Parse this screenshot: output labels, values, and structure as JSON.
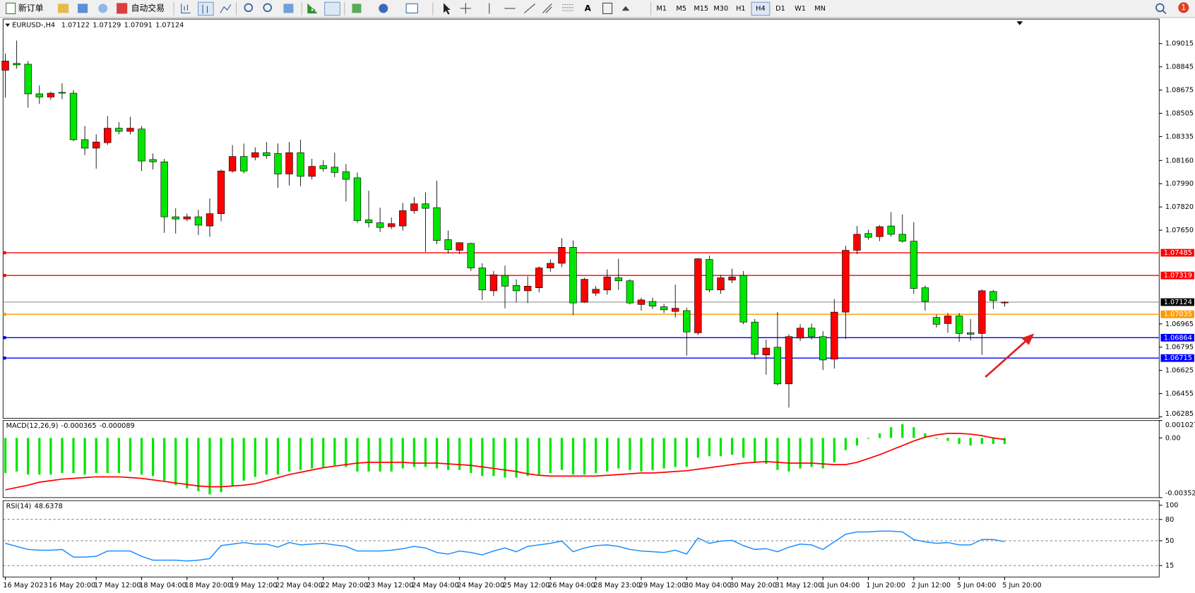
{
  "toolbar": {
    "buttons": [
      "新订单",
      "自动交易"
    ],
    "timeframes": [
      "M1",
      "M5",
      "M15",
      "M30",
      "H1",
      "H4",
      "D1",
      "W1",
      "MN"
    ],
    "active_timeframe": "H4",
    "notifications": 1
  },
  "chart_data": [
    {
      "type": "candlestick",
      "title": "EURUSD-,H4",
      "up_color": "#ff0000",
      "down_color": "#00e600",
      "categories": [
        "16 May 2023",
        null,
        null,
        null,
        "16 May 20:00",
        null,
        null,
        null,
        "17 May 12:00",
        null,
        null,
        null,
        "18 May 04:00",
        null,
        null,
        null,
        "18 May 20:00",
        null,
        null,
        null,
        "19 May 12:00",
        null,
        null,
        null,
        "22 May 04:00",
        null,
        null,
        null,
        "22 May 20:00",
        null,
        null,
        null,
        "23 May 12:00",
        null,
        null,
        null,
        "24 May 04:00",
        null,
        null,
        null,
        "24 May 20:00",
        null,
        null,
        null,
        "25 May 12:00",
        null,
        null,
        null,
        "26 May 04:00",
        null,
        null,
        null,
        "28 May 23:00",
        null,
        null,
        null,
        "29 May 12:00",
        null,
        null,
        null,
        "30 May 04:00",
        null,
        null,
        null,
        "30 May 20:00",
        null,
        null,
        null,
        "31 May 12:00",
        null,
        null,
        null,
        "1 Jun 04:00",
        null,
        null,
        null,
        "1 Jun 20:00",
        null,
        null,
        null,
        "2 Jun 12:00",
        null,
        null,
        null,
        "5 Jun 04:00",
        null,
        null,
        null,
        "5 Jun 20:00"
      ],
      "ohlc": [
        [
          1.0882,
          1.08942,
          1.08619,
          1.08887
        ],
        [
          1.0887,
          1.09037,
          1.08831,
          1.08859
        ],
        [
          1.08864,
          1.08887,
          1.08546,
          1.08647
        ],
        [
          1.08647,
          1.08708,
          1.08574,
          1.08624
        ],
        [
          1.08624,
          1.08663,
          1.08602,
          1.08652
        ],
        [
          1.08658,
          1.08725,
          1.08608,
          1.08652
        ],
        [
          1.08652,
          1.08675,
          1.08301,
          1.08312
        ],
        [
          1.08312,
          1.08412,
          1.082,
          1.0825
        ],
        [
          1.0825,
          1.08351,
          1.081,
          1.08295
        ],
        [
          1.0829,
          1.08485,
          1.08273,
          1.08396
        ],
        [
          1.08396,
          1.0844,
          1.08351,
          1.08373
        ],
        [
          1.08373,
          1.08479,
          1.08351,
          1.08396
        ],
        [
          1.0839,
          1.08412,
          1.08083,
          1.08156
        ],
        [
          1.08167,
          1.08211,
          1.08094,
          1.0815
        ],
        [
          1.0815,
          1.08172,
          1.07631,
          1.07748
        ],
        [
          1.07748,
          1.0781,
          1.07626,
          1.07732
        ],
        [
          1.07732,
          1.07771,
          1.07715,
          1.07748
        ],
        [
          1.07748,
          1.07799,
          1.07614,
          1.07687
        ],
        [
          1.07681,
          1.07882,
          1.07603,
          1.07771
        ],
        [
          1.07771,
          1.08094,
          1.07715,
          1.08083
        ],
        [
          1.08083,
          1.08273,
          1.08072,
          1.08189
        ],
        [
          1.08189,
          1.08284,
          1.08066,
          1.08083
        ],
        [
          1.08184,
          1.08256,
          1.08161,
          1.08217
        ],
        [
          1.08217,
          1.08295,
          1.08172,
          1.08195
        ],
        [
          1.08211,
          1.08284,
          1.0796,
          1.08061
        ],
        [
          1.08061,
          1.08295,
          1.07977,
          1.08217
        ],
        [
          1.08217,
          1.08312,
          1.07972,
          1.08044
        ],
        [
          1.08044,
          1.08172,
          1.08022,
          1.08117
        ],
        [
          1.08122,
          1.08161,
          1.08078,
          1.081
        ],
        [
          1.08111,
          1.08217,
          1.08038,
          1.08072
        ],
        [
          1.08078,
          1.08133,
          1.0786,
          1.08022
        ],
        [
          1.08033,
          1.08072,
          1.07704,
          1.0772
        ],
        [
          1.07726,
          1.07938,
          1.0767,
          1.07704
        ],
        [
          1.07704,
          1.07815,
          1.07637,
          1.0767
        ],
        [
          1.07676,
          1.07743,
          1.07659,
          1.07698
        ],
        [
          1.07681,
          1.07849,
          1.07648,
          1.07793
        ],
        [
          1.07793,
          1.07893,
          1.07771,
          1.07843
        ],
        [
          1.07843,
          1.07927,
          1.07492,
          1.0781
        ],
        [
          1.07815,
          1.08011,
          1.07547,
          1.07575
        ],
        [
          1.07581,
          1.07648,
          1.0748,
          1.07508
        ],
        [
          1.07503,
          1.07559,
          1.07475,
          1.07559
        ],
        [
          1.07553,
          1.07559,
          1.07352,
          1.07374
        ],
        [
          1.07374,
          1.07408,
          1.0714,
          1.07213
        ],
        [
          1.07207,
          1.07352,
          1.07168,
          1.07324
        ],
        [
          1.07319,
          1.07391,
          1.07079,
          1.07241
        ],
        [
          1.07246,
          1.07291,
          1.07123,
          1.07207
        ],
        [
          1.07207,
          1.07313,
          1.07118,
          1.07241
        ],
        [
          1.07229,
          1.07386,
          1.07196,
          1.07374
        ],
        [
          1.07374,
          1.07436,
          1.07347,
          1.07408
        ],
        [
          1.07408,
          1.07592,
          1.0738,
          1.07525
        ],
        [
          1.07525,
          1.07575,
          1.07029,
          1.07118
        ],
        [
          1.07123,
          1.07302,
          1.07118,
          1.07291
        ],
        [
          1.0719,
          1.07241,
          1.07168,
          1.07218
        ],
        [
          1.07213,
          1.07363,
          1.07179,
          1.07308
        ],
        [
          1.07302,
          1.07441,
          1.07213,
          1.0728
        ],
        [
          1.0728,
          1.07291,
          1.07107,
          1.07118
        ],
        [
          1.07107,
          1.07157,
          1.07062,
          1.0714
        ],
        [
          1.07129,
          1.07157,
          1.07073,
          1.07095
        ],
        [
          1.0709,
          1.07112,
          1.07045,
          1.07068
        ],
        [
          1.07056,
          1.07252,
          1.07012,
          1.07079
        ],
        [
          1.07062,
          1.07084,
          1.06733,
          1.06906
        ],
        [
          1.069,
          1.07447,
          1.06883,
          1.07441
        ],
        [
          1.07436,
          1.07464,
          1.07196,
          1.07213
        ],
        [
          1.07213,
          1.07324,
          1.07185,
          1.07302
        ],
        [
          1.07285,
          1.07369,
          1.07263,
          1.07308
        ],
        [
          1.07319,
          1.07352,
          1.06962,
          1.06978
        ],
        [
          1.06978,
          1.07001,
          1.06707,
          1.06742
        ],
        [
          1.06738,
          1.0685,
          1.06593,
          1.06788
        ],
        [
          1.06794,
          1.07051,
          1.06515,
          1.06526
        ],
        [
          1.06526,
          1.06889,
          1.06353,
          1.06872
        ],
        [
          1.06861,
          1.06962,
          1.06839,
          1.06934
        ],
        [
          1.06934,
          1.06967,
          1.0685,
          1.06872
        ],
        [
          1.06872,
          1.06911,
          1.06627,
          1.06701
        ],
        [
          1.06707,
          1.07146,
          1.06638,
          1.07051
        ],
        [
          1.07051,
          1.07536,
          1.06855,
          1.07503
        ],
        [
          1.07503,
          1.07681,
          1.07475,
          1.0762
        ],
        [
          1.07626,
          1.07653,
          1.07581,
          1.07598
        ],
        [
          1.07603,
          1.07687,
          1.0757,
          1.07676
        ],
        [
          1.07681,
          1.07782,
          1.07603,
          1.0762
        ],
        [
          1.0762,
          1.07765,
          1.07559,
          1.0757
        ],
        [
          1.0757,
          1.07709,
          1.07185,
          1.07224
        ],
        [
          1.07229,
          1.07246,
          1.07062,
          1.07129
        ],
        [
          1.07012,
          1.07034,
          1.06939,
          1.06962
        ],
        [
          1.06967,
          1.07045,
          1.069,
          1.07023
        ],
        [
          1.07023,
          1.07045,
          1.06833,
          1.06895
        ],
        [
          1.069,
          1.07001,
          1.06844,
          1.06889
        ],
        [
          1.06895,
          1.07218,
          1.06738,
          1.07207
        ],
        [
          1.07202,
          1.07213,
          1.07073,
          1.07135
        ],
        [
          1.07122,
          1.07129,
          1.07091,
          1.07124
        ]
      ],
      "ylim": [
        1.06275,
        1.09194
      ],
      "yticks": [
        1.09015,
        1.08845,
        1.08675,
        1.08505,
        1.08335,
        {
          "value": 1.0816,
          "label": "1.08160"
        },
        {
          "value": 1.0799,
          "label": "1.07990"
        },
        {
          "value": 1.0782,
          "label": "1.07820"
        },
        {
          "value": 1.0765,
          "label": "1.07650"
        },
        1.06965,
        1.06795,
        1.06625,
        1.06455,
        1.06285
      ],
      "lines": [
        {
          "value": 1.07485,
          "color": "#ff0000"
        },
        {
          "value": 1.07319,
          "color": "#ff0000"
        },
        {
          "value": 1.07035,
          "color": "#ff9900"
        },
        {
          "value": 1.06864,
          "color": "#0000ff"
        },
        {
          "value": 1.06715,
          "color": "#0000ff"
        }
      ]
    },
    {
      "type": "macd",
      "label": "MACD(12,26,9)",
      "color": "#00e600",
      "signal_color": "#ff0000",
      "values": [
        -0.00207,
        -0.00198,
        -0.00216,
        -0.00216,
        -0.00216,
        -0.00207,
        -0.00207,
        -0.00216,
        -0.00207,
        -0.00207,
        -0.00207,
        -0.00198,
        -0.00216,
        -0.00225,
        -0.00252,
        -0.00279,
        -0.00297,
        -0.00315,
        -0.00333,
        -0.0032,
        -0.00288,
        -0.00252,
        -0.0023,
        -0.00216,
        -0.00216,
        -0.00198,
        -0.00189,
        -0.0018,
        -0.00171,
        -0.00162,
        -0.00171,
        -0.00198,
        -0.00198,
        -0.00198,
        -0.00198,
        -0.0018,
        -0.00171,
        -0.00171,
        -0.0018,
        -0.00189,
        -0.00189,
        -0.00207,
        -0.00225,
        -0.00225,
        -0.00234,
        -0.00234,
        -0.00225,
        -0.00216,
        -0.00207,
        -0.00189,
        -0.00216,
        -0.00216,
        -0.00207,
        -0.00198,
        -0.0018,
        -0.00189,
        -0.00198,
        -0.00189,
        -0.0018,
        -0.00171,
        -0.00171,
        -0.00117,
        -0.00108,
        -0.00108,
        -0.00099,
        -0.00117,
        -0.00144,
        -0.00153,
        -0.00189,
        -0.00198,
        -0.0018,
        -0.00171,
        -0.0018,
        -0.00144,
        -0.00072,
        -0.00045,
        -5e-05,
        0.00027,
        0.00063,
        0.00081,
        0.00063,
        0.00027,
        -5e-05,
        -0.00018,
        -0.00036,
        -0.00045,
        -0.00036,
        -0.00036,
        -0.000365
      ],
      "signal": [
        -0.00306,
        -0.002925,
        -0.00279,
        -0.00261,
        -0.00252,
        -0.00243,
        -0.002385,
        -0.00234,
        -0.002295,
        -0.002295,
        -0.002295,
        -0.00234,
        -0.002385,
        -0.002475,
        -0.002565,
        -0.002655,
        -0.002745,
        -0.002835,
        -0.00288,
        -0.00288,
        -0.002835,
        -0.00279,
        -0.0027,
        -0.00252,
        -0.00234,
        -0.00216,
        -0.002025,
        -0.00189,
        -0.001755,
        -0.001665,
        -0.001575,
        -0.001485,
        -0.00144,
        -0.00144,
        -0.00144,
        -0.00144,
        -0.001485,
        -0.001485,
        -0.001485,
        -0.00153,
        -0.001575,
        -0.00162,
        -0.00171,
        -0.0018,
        -0.00189,
        -0.00198,
        -0.002115,
        -0.002205,
        -0.00225,
        -0.00225,
        -0.00225,
        -0.00225,
        -0.00225,
        -0.002205,
        -0.00216,
        -0.002115,
        -0.00207,
        -0.00207,
        -0.002025,
        -0.00198,
        -0.001935,
        -0.001845,
        -0.001755,
        -0.001665,
        -0.001575,
        -0.001485,
        -0.00144,
        -0.001395,
        -0.00144,
        -0.001485,
        -0.001485,
        -0.001485,
        -0.00153,
        -0.001575,
        -0.001575,
        -0.00144,
        -0.001215,
        -0.00099,
        -0.00072,
        -0.00045,
        -0.00018,
        4.5e-05,
        0.00018,
        0.00027,
        0.00027,
        0.000225,
        0.000135,
        0,
        -8.9e-05
      ],
      "ylim": [
        -0.00352,
        0.001027
      ],
      "yticks": [
        0.001027,
        {
          "value": 0,
          "label": "0.00"
        },
        -0.00352
      ]
    },
    {
      "type": "line",
      "label": "RSI(14)",
      "color": "#1e90ff",
      "values": [
        46.3,
        42.0,
        37.7,
        36.6,
        36.6,
        37.7,
        26.9,
        26.9,
        28.0,
        35.5,
        35.5,
        35.5,
        28.0,
        22.6,
        22.6,
        22.6,
        21.5,
        22.6,
        24.8,
        43.1,
        45.2,
        47.4,
        45.2,
        45.2,
        40.9,
        47.4,
        44.1,
        45.2,
        46.3,
        44.1,
        42.0,
        35.5,
        35.5,
        35.5,
        36.6,
        38.8,
        42.0,
        39.8,
        33.4,
        31.2,
        35.5,
        33.4,
        30.1,
        35.5,
        39.8,
        34.5,
        42.0,
        44.1,
        46.3,
        49.5,
        34.5,
        39.8,
        43.1,
        44.1,
        42.0,
        37.7,
        35.5,
        34.5,
        33.4,
        36.6,
        31.2,
        53.8,
        46.3,
        49.5,
        50.6,
        43.1,
        37.7,
        38.8,
        34.5,
        40.9,
        45.2,
        44.1,
        37.7,
        48.4,
        59.2,
        62.4,
        62.4,
        63.5,
        63.5,
        62.4,
        51.7,
        48.4,
        46.3,
        47.4,
        44.1,
        44.1,
        51.7,
        51.7,
        48.6378
      ],
      "ylim": [
        0,
        100
      ],
      "yticks": [
        100,
        80,
        50,
        15
      ],
      "levels": [
        80,
        50,
        15
      ]
    }
  ]
}
